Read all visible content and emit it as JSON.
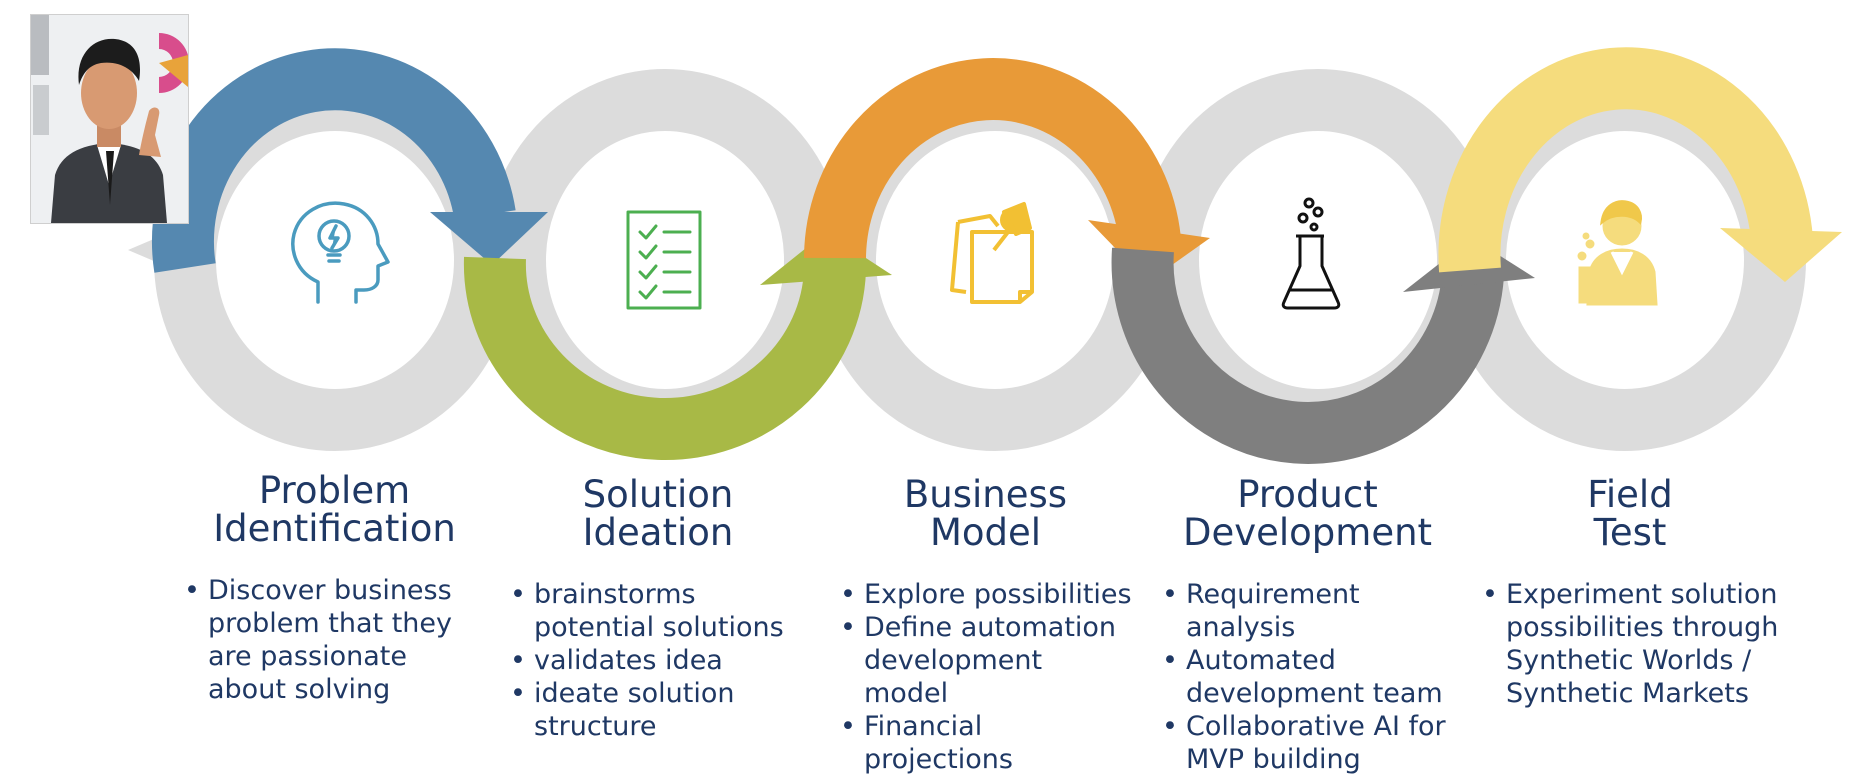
{
  "colors": {
    "grey_ring": "#DCDCDC",
    "blue": "#5588B0",
    "green": "#A8B946",
    "orange": "#E89A38",
    "dark_grey": "#7F7F7F",
    "yellow": "#F5DC7D",
    "text": "#1F3864"
  },
  "avatar": {
    "icon": "businessman-thinking-illustration"
  },
  "stages": [
    {
      "title": "Problem\nIdentification",
      "icon": "lightbulb-head-icon",
      "bullets": [
        "Discover business problem that they are passionate about solving"
      ]
    },
    {
      "title": "Solution\nIdeation",
      "icon": "checklist-icon",
      "bullets": [
        "brainstorms potential solutions",
        "validates idea",
        "ideate solution structure"
      ]
    },
    {
      "title": "Business\nModel",
      "icon": "sticky-notes-pushpin-icon",
      "bullets": [
        "Explore possibilities",
        "Define automation development model",
        "Financial projections"
      ]
    },
    {
      "title": "Product\nDevelopment",
      "icon": "lab-flask-icon",
      "bullets": [
        "Requirement analysis",
        " Automated development team",
        "Collaborative AI for MVP building"
      ]
    },
    {
      "title": "Field\nTest",
      "icon": "scientist-icon",
      "bullets": [
        " Experiment solution possibilities through Synthetic Worlds / Synthetic Markets"
      ]
    }
  ]
}
